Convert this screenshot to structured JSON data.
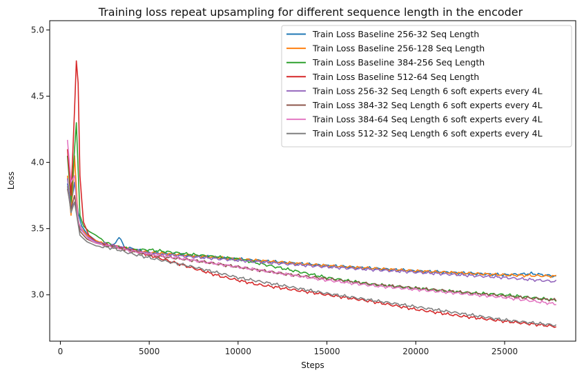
{
  "chart_data": {
    "type": "line",
    "title": "Training loss repeat upsampling for different sequence length in the encoder",
    "xlabel": "Steps",
    "ylabel": "Loss",
    "xlim": [
      -600,
      29000
    ],
    "ylim": [
      2.65,
      5.07
    ],
    "x_ticks": [
      0,
      5000,
      10000,
      15000,
      20000,
      25000
    ],
    "y_ticks": [
      3.0,
      3.5,
      4.0,
      4.5,
      5.0
    ],
    "legend_position": "top-right",
    "series": [
      {
        "name": "Train Loss Baseline 256-32 Seq Length",
        "color": "#1f77b4",
        "x": [
          400,
          600,
          800,
          1000,
          1200,
          1500,
          2000,
          2500,
          3000,
          3300,
          3600,
          4000,
          5000,
          7000,
          10000,
          15000,
          20000,
          25000,
          26500,
          27900
        ],
        "y": [
          3.84,
          3.68,
          3.85,
          3.62,
          3.52,
          3.46,
          3.41,
          3.38,
          3.37,
          3.44,
          3.36,
          3.35,
          3.32,
          3.3,
          3.27,
          3.22,
          3.18,
          3.15,
          3.16,
          3.14
        ]
      },
      {
        "name": "Train Loss Baseline 256-128 Seq Length",
        "color": "#ff7f0e",
        "x": [
          400,
          600,
          800,
          1000,
          1200,
          1500,
          2000,
          2500,
          3000,
          3500,
          4000,
          5000,
          7000,
          10000,
          15000,
          20000,
          25000,
          27900
        ],
        "y": [
          3.9,
          3.6,
          4.05,
          3.55,
          3.5,
          3.45,
          3.41,
          3.38,
          3.36,
          3.35,
          3.34,
          3.32,
          3.3,
          3.27,
          3.22,
          3.18,
          3.15,
          3.14
        ]
      },
      {
        "name": "Train Loss Baseline 384-256 Seq Length",
        "color": "#2ca02c",
        "x": [
          400,
          600,
          900,
          1100,
          1300,
          1600,
          2000,
          2500,
          3000,
          4000,
          5000,
          7000,
          10000,
          12500,
          15000,
          17500,
          20000,
          22500,
          25000,
          27900
        ],
        "y": [
          4.05,
          3.7,
          4.3,
          3.6,
          3.52,
          3.48,
          3.45,
          3.4,
          3.37,
          3.34,
          3.34,
          3.31,
          3.27,
          3.2,
          3.13,
          3.08,
          3.05,
          3.02,
          3.0,
          2.96
        ]
      },
      {
        "name": "Train Loss Baseline 512-64 Seq Length",
        "color": "#d62728",
        "x": [
          400,
          600,
          800,
          950,
          1100,
          1300,
          1600,
          2000,
          2500,
          3000,
          4000,
          5000,
          7000,
          9000,
          11000,
          13000,
          15000,
          17500,
          20000,
          22500,
          25000,
          27900
        ],
        "y": [
          4.1,
          3.75,
          4.4,
          4.95,
          3.9,
          3.55,
          3.45,
          3.4,
          3.38,
          3.37,
          3.34,
          3.3,
          3.22,
          3.14,
          3.08,
          3.04,
          3.0,
          2.95,
          2.89,
          2.84,
          2.8,
          2.76
        ]
      },
      {
        "name": "Train Loss 256-32 Seq Length 6 soft experts every 4L",
        "color": "#9467bd",
        "x": [
          400,
          600,
          800,
          1100,
          1500,
          2000,
          3000,
          4000,
          5000,
          7000,
          10000,
          15000,
          20000,
          25000,
          27900
        ],
        "y": [
          3.88,
          3.65,
          3.7,
          3.5,
          3.44,
          3.4,
          3.37,
          3.34,
          3.31,
          3.29,
          3.26,
          3.21,
          3.17,
          3.13,
          3.1
        ]
      },
      {
        "name": "Train Loss 384-32 Seq Length 6 soft experts every 4L",
        "color": "#8c564b",
        "x": [
          400,
          600,
          800,
          1100,
          1500,
          2000,
          3000,
          4000,
          5000,
          7500,
          10000,
          12500,
          15000,
          17500,
          20000,
          22500,
          25000,
          27900
        ],
        "y": [
          3.8,
          3.65,
          3.75,
          3.48,
          3.42,
          3.39,
          3.36,
          3.33,
          3.3,
          3.26,
          3.21,
          3.16,
          3.12,
          3.08,
          3.05,
          3.02,
          2.99,
          2.96
        ]
      },
      {
        "name": "Train Loss 384-64 Seq Length 6 soft experts every 4L",
        "color": "#e377c2",
        "x": [
          400,
          600,
          800,
          1000,
          1300,
          1600,
          2000,
          3000,
          4000,
          5000,
          7500,
          10000,
          12500,
          15000,
          17500,
          20000,
          22500,
          25000,
          27900
        ],
        "y": [
          4.17,
          3.85,
          3.9,
          3.55,
          3.47,
          3.42,
          3.39,
          3.36,
          3.33,
          3.31,
          3.26,
          3.21,
          3.16,
          3.11,
          3.07,
          3.04,
          3.01,
          2.98,
          2.93
        ]
      },
      {
        "name": "Train Loss 512-32 Seq Length 6 soft experts every 4L",
        "color": "#7f7f7f",
        "x": [
          400,
          600,
          800,
          1100,
          1500,
          2000,
          3000,
          4000,
          5000,
          7500,
          10000,
          12500,
          15000,
          17500,
          20000,
          22500,
          25000,
          27900
        ],
        "y": [
          3.82,
          3.62,
          3.7,
          3.45,
          3.4,
          3.37,
          3.35,
          3.31,
          3.28,
          3.21,
          3.13,
          3.07,
          3.01,
          2.96,
          2.91,
          2.86,
          2.81,
          2.77
        ]
      }
    ]
  }
}
